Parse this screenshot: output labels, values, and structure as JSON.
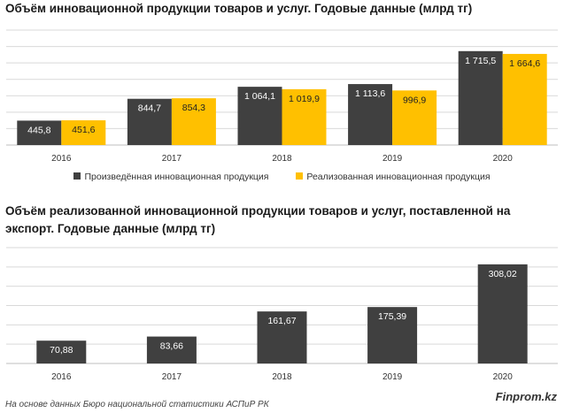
{
  "chart_data": [
    {
      "type": "bar",
      "title": "Объём инновационной продукции товаров и услуг. Годовые данные (млрд тг)",
      "categories": [
        "2016",
        "2017",
        "2018",
        "2019",
        "2020"
      ],
      "series": [
        {
          "name": "Произведённая инновационная продукция",
          "color": "#404040",
          "values": [
            445.8,
            844.7,
            1064.1,
            1113.6,
            1715.5
          ],
          "labels": [
            "445,8",
            "844,7",
            "1 064,1",
            "1 113,6",
            "1 715,5"
          ]
        },
        {
          "name": "Реализованная инновационная продукция",
          "color": "#FFC000",
          "values": [
            451.6,
            854.3,
            1019.9,
            996.9,
            1664.6
          ],
          "labels": [
            "451,6",
            "854,3",
            "1 019,9",
            "996,9",
            "1 664,6"
          ]
        }
      ],
      "ylim": [
        0,
        2100
      ],
      "grid": true,
      "legend": "bottom"
    },
    {
      "type": "bar",
      "title": "Объём реализованной инновационной продукции товаров и услуг, поставленной на экспорт. Годовые данные (млрд тг)",
      "categories": [
        "2016",
        "2017",
        "2018",
        "2019",
        "2020"
      ],
      "series": [
        {
          "color": "#404040",
          "values": [
            70.88,
            83.66,
            161.67,
            175.39,
            308.02
          ],
          "labels": [
            "70,88",
            "83,66",
            "161,67",
            "175,39",
            "308,02"
          ]
        }
      ],
      "ylim": [
        0,
        360
      ],
      "grid": true
    }
  ],
  "footer": {
    "brand": "Finprom.kz",
    "source": "На основе данных Бюро национальной статистики АСПиР РК"
  }
}
